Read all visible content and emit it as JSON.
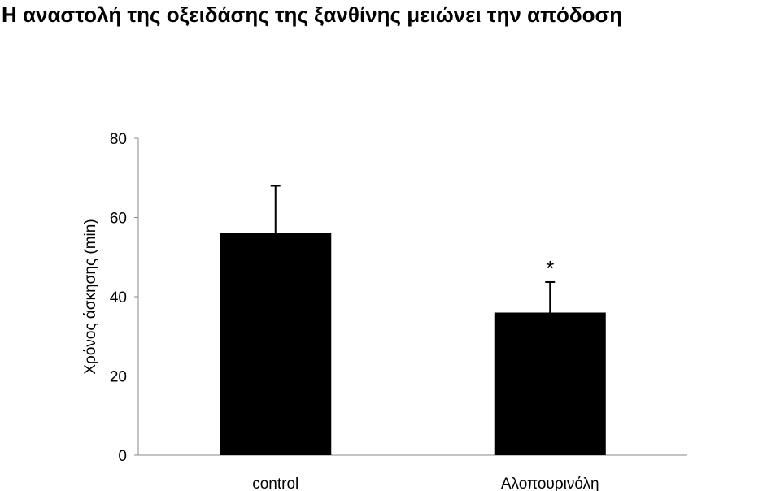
{
  "chart_data": {
    "type": "bar",
    "title": "Η αναστολή της οξειδάσης της ξανθίνης μειώνει την απόδοση",
    "y_label": "Χρόνος άσκησης (min)",
    "categories": [
      "control",
      "Αλοπουρινόλη"
    ],
    "values": [
      56,
      36
    ],
    "errors": [
      12,
      7.7
    ],
    "color": "#000000",
    "annotation": "*",
    "ylim": [
      0,
      80
    ],
    "yticks": [
      0,
      20,
      40,
      60,
      80
    ],
    "grid": false
  }
}
